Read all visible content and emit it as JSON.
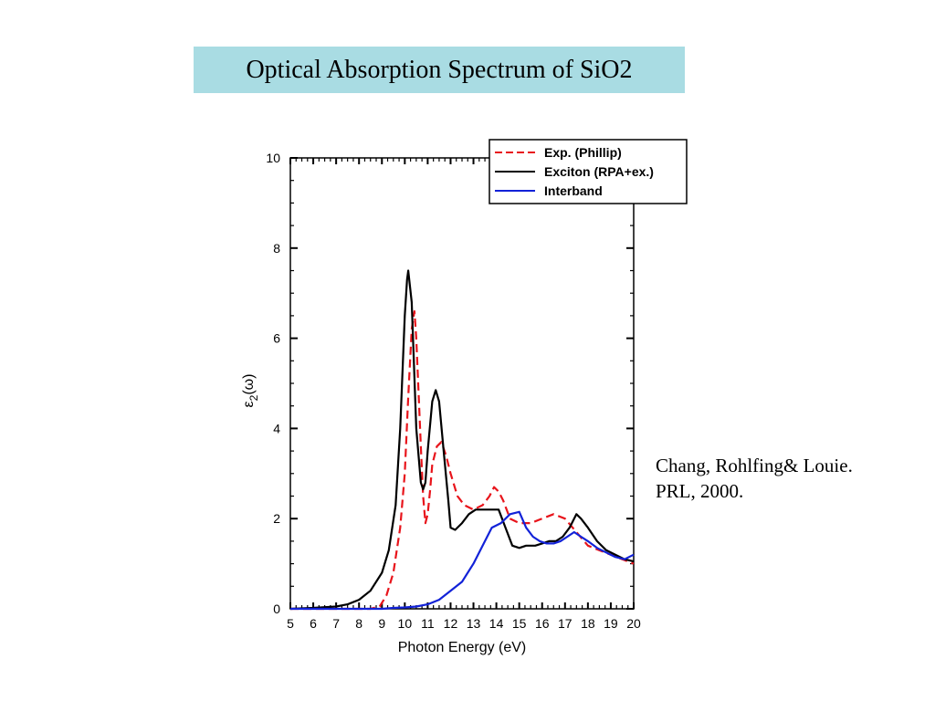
{
  "slide": {
    "title": "Optical Absorption Spectrum of SiO2",
    "citation_line1": "Chang, Rohlfing& Louie.",
    "citation_line2": "PRL, 2000."
  },
  "chart_data": {
    "type": "line",
    "title": "",
    "xlabel": "Photon Energy (eV)",
    "ylabel": "ε",
    "ylabel_sub": "2",
    "ylabel_suffix": "(ω)",
    "xlim": [
      5,
      20
    ],
    "ylim": [
      0,
      10
    ],
    "xticks": [
      5,
      6,
      7,
      8,
      9,
      10,
      11,
      12,
      13,
      14,
      15,
      16,
      17,
      18,
      19,
      20
    ],
    "yticks": [
      0,
      2,
      4,
      6,
      8,
      10
    ],
    "legend_position": "top-right",
    "grid": false,
    "series": [
      {
        "name": "Exp. (Phillip)",
        "color": "#e8141b",
        "dash": "dashed",
        "x": [
          5,
          8.5,
          8.9,
          9.2,
          9.5,
          9.8,
          10.0,
          10.15,
          10.3,
          10.42,
          10.5,
          10.6,
          10.7,
          10.8,
          10.9,
          11.0,
          11.1,
          11.2,
          11.4,
          11.6,
          11.8,
          12.0,
          12.3,
          12.6,
          13.0,
          13.4,
          13.7,
          13.9,
          14.1,
          14.3,
          14.6,
          15.0,
          15.5,
          16.0,
          16.5,
          17.0,
          17.5,
          18.0,
          18.5,
          19.0,
          19.5,
          20.0
        ],
        "y": [
          0,
          0,
          0.05,
          0.3,
          0.8,
          1.8,
          3.0,
          4.7,
          6.2,
          6.6,
          6.0,
          4.8,
          3.6,
          2.5,
          1.9,
          2.1,
          2.6,
          3.2,
          3.6,
          3.7,
          3.4,
          3.0,
          2.5,
          2.3,
          2.2,
          2.3,
          2.5,
          2.7,
          2.6,
          2.4,
          2.0,
          1.9,
          1.9,
          2.0,
          2.1,
          2.0,
          1.7,
          1.4,
          1.3,
          1.2,
          1.1,
          1.0
        ]
      },
      {
        "name": "Exciton (RPA+ex.)",
        "color": "#000000",
        "dash": "solid",
        "x": [
          5,
          6,
          7,
          7.5,
          8.0,
          8.5,
          9.0,
          9.3,
          9.6,
          9.8,
          10.0,
          10.1,
          10.15,
          10.3,
          10.5,
          10.7,
          10.8,
          10.9,
          11.0,
          11.2,
          11.35,
          11.5,
          11.7,
          11.9,
          12.0,
          12.2,
          12.5,
          12.8,
          13.1,
          13.4,
          13.8,
          14.1,
          14.4,
          14.7,
          15.0,
          15.3,
          15.7,
          16.0,
          16.3,
          16.6,
          16.9,
          17.2,
          17.5,
          17.7,
          18.0,
          18.4,
          18.8,
          19.2,
          19.6,
          20.0
        ],
        "y": [
          0,
          0.02,
          0.05,
          0.1,
          0.2,
          0.4,
          0.8,
          1.3,
          2.3,
          4.0,
          6.5,
          7.3,
          7.5,
          6.8,
          4.0,
          2.8,
          2.65,
          2.8,
          3.5,
          4.6,
          4.85,
          4.6,
          3.5,
          2.4,
          1.8,
          1.75,
          1.9,
          2.1,
          2.2,
          2.2,
          2.2,
          2.2,
          1.8,
          1.4,
          1.35,
          1.4,
          1.4,
          1.45,
          1.5,
          1.5,
          1.6,
          1.8,
          2.1,
          2.0,
          1.8,
          1.5,
          1.3,
          1.2,
          1.1,
          1.05
        ]
      },
      {
        "name": "Interband",
        "color": "#1222d8",
        "dash": "solid",
        "x": [
          5,
          8,
          9,
          9.5,
          10,
          10.5,
          11,
          11.5,
          12.0,
          12.5,
          13.0,
          13.4,
          13.8,
          14.2,
          14.6,
          15.0,
          15.3,
          15.6,
          15.9,
          16.2,
          16.5,
          16.8,
          17.1,
          17.4,
          17.7,
          18.0,
          18.4,
          18.8,
          19.2,
          19.6,
          20.0
        ],
        "y": [
          0,
          0,
          0,
          0.02,
          0.03,
          0.05,
          0.1,
          0.2,
          0.4,
          0.6,
          1.0,
          1.4,
          1.8,
          1.9,
          2.1,
          2.15,
          1.8,
          1.6,
          1.5,
          1.45,
          1.45,
          1.5,
          1.6,
          1.7,
          1.6,
          1.5,
          1.35,
          1.25,
          1.15,
          1.1,
          1.2
        ]
      }
    ]
  }
}
